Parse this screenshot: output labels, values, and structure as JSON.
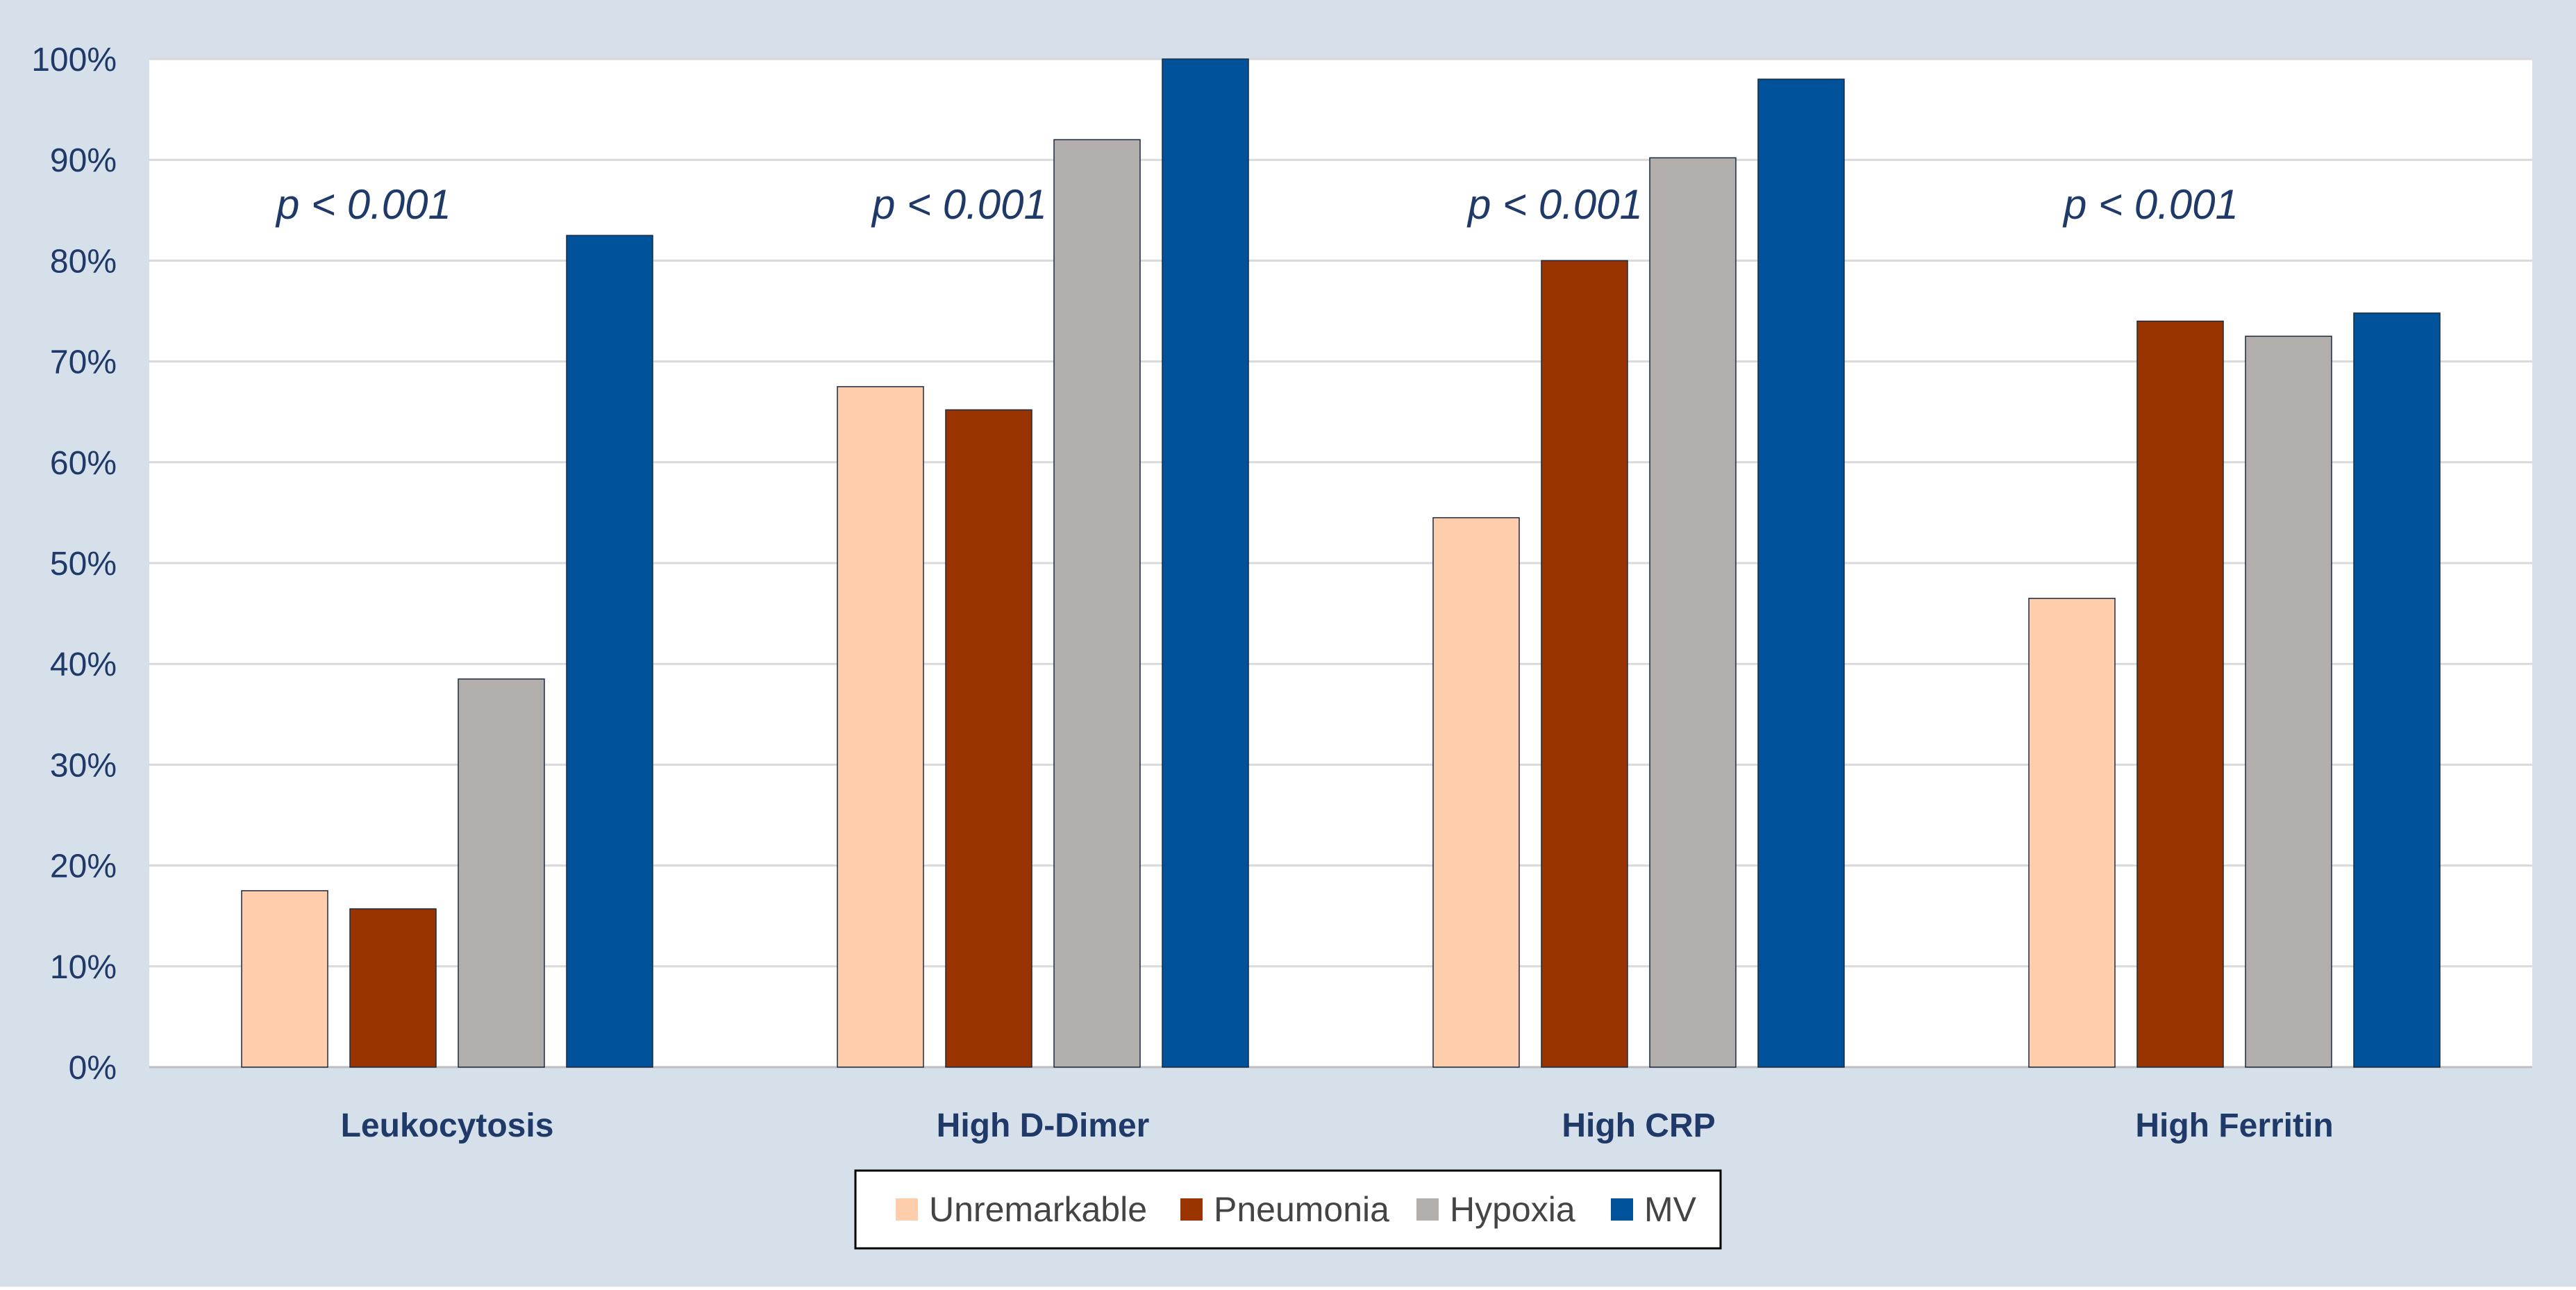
{
  "colors": {
    "background": "#d6e0ea",
    "plot": "#ffffff",
    "grid": "#d9d9d9",
    "axis_text": "#1f3a68"
  },
  "chart_data": {
    "type": "bar",
    "title": "",
    "xlabel": "",
    "ylabel": "",
    "ylim": [
      0,
      100
    ],
    "yticks": [
      "0%",
      "10%",
      "20%",
      "30%",
      "40%",
      "50%",
      "60%",
      "70%",
      "80%",
      "90%",
      "100%"
    ],
    "grid": true,
    "legend_position": "bottom-center",
    "categories": [
      "Leukocytosis",
      "High D-Dimer",
      "High CRP",
      "High Ferritin"
    ],
    "series": [
      {
        "name": "Unremarkable",
        "color": "#fdcdac",
        "values": [
          17.5,
          67.5,
          54.5,
          46.5
        ]
      },
      {
        "name": "Pneumonia",
        "color": "#993300",
        "values": [
          15.7,
          65.2,
          80.0,
          74.0
        ]
      },
      {
        "name": "Hypoxia",
        "color": "#b1aeab",
        "values": [
          38.5,
          92.0,
          90.2,
          72.5
        ]
      },
      {
        "name": "MV",
        "color": "#00529b",
        "values": [
          82.5,
          100.0,
          98.0,
          74.8
        ]
      }
    ],
    "annotations": [
      "p < 0.001",
      "p < 0.001",
      "p < 0.001",
      "p < 0.001"
    ]
  }
}
